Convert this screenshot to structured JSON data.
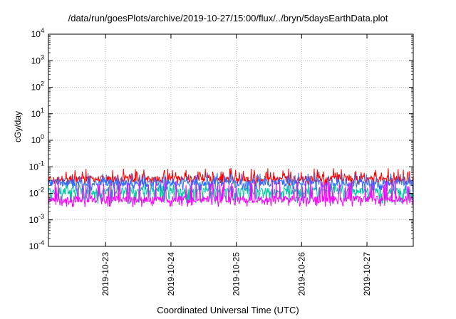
{
  "chart_data": {
    "type": "line",
    "title": "/data/run/goesPlots/archive/2019-10-27/15:00/flux/../bryn/5daysEarthData.plot",
    "xlabel": "Coordinated Universal Time (UTC)",
    "ylabel": "cGy/day",
    "yscale": "log",
    "ylim": [
      0.0001,
      10000
    ],
    "yticks": [
      {
        "base": "10",
        "exp": "-4"
      },
      {
        "base": "10",
        "exp": "-3"
      },
      {
        "base": "10",
        "exp": "-2"
      },
      {
        "base": "10",
        "exp": "-1"
      },
      {
        "base": "10",
        "exp": "0"
      },
      {
        "base": "10",
        "exp": "1"
      },
      {
        "base": "10",
        "exp": "2"
      },
      {
        "base": "10",
        "exp": "3"
      },
      {
        "base": "10",
        "exp": "4"
      }
    ],
    "xlim": [
      "2019-10-22T03:00",
      "2019-10-27T17:00"
    ],
    "xticks": [
      "2019-10-23",
      "2019-10-24",
      "2019-10-25",
      "2019-10-26",
      "2019-10-27"
    ],
    "grid": true,
    "series": [
      {
        "color": "#ff0000",
        "typical": 0.035,
        "min": 0.018,
        "max": 0.09
      },
      {
        "color": "#00c8a0",
        "typical": 0.012,
        "min": 0.004,
        "max": 0.025
      },
      {
        "color": "#2f6fff",
        "typical": 0.025,
        "min": 0.012,
        "max": 0.06
      },
      {
        "color": "#ff00ff",
        "typical": 0.006,
        "min": 0.003,
        "max": 0.03
      }
    ]
  }
}
